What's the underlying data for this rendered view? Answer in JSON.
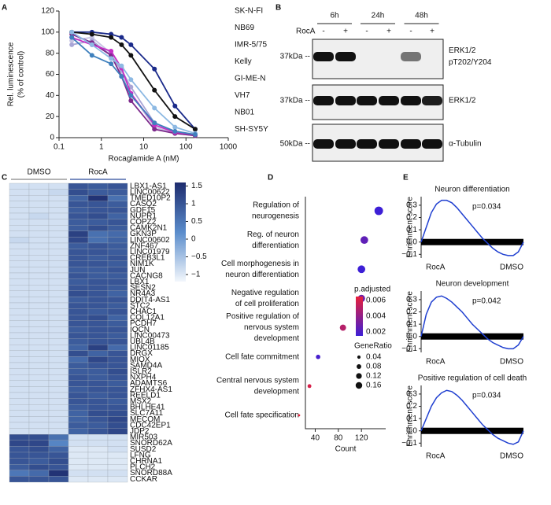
{
  "panel_labels": [
    "A",
    "B",
    "C",
    "D",
    "E"
  ],
  "blot": {
    "time_points": [
      "6h",
      "24h",
      "48h"
    ],
    "treatment_label": "RocA",
    "lanes": [
      "-",
      "+",
      "-",
      "+",
      "-",
      "+"
    ],
    "rows": [
      {
        "marker": "37kDa --",
        "label": [
          "ERK1/2",
          "pT202/Y204"
        ]
      },
      {
        "marker": "37kDa --",
        "label": [
          "ERK1/2"
        ]
      },
      {
        "marker": "50kDa --",
        "label": [
          "α-Tubulin"
        ]
      }
    ]
  },
  "chart_data": [
    {
      "type": "line",
      "x_label": "Rocaglamide A (nM)",
      "y_label": [
        "Rel. luminescence",
        "(% of control)"
      ],
      "xscale": "log",
      "xlim": [
        0.1,
        1000
      ],
      "xticks": [
        0.1,
        1,
        10,
        100,
        1000
      ],
      "ylim": [
        0,
        120
      ],
      "yticks": [
        0,
        20,
        40,
        60,
        80,
        100,
        120
      ],
      "x": [
        0.2,
        0.6,
        1.7,
        3,
        5,
        18,
        55,
        165
      ],
      "series": [
        {
          "name": "SK-N-FI",
          "color": "#c5c3e3",
          "values": [
            92,
            95,
            80,
            62,
            42,
            10,
            4,
            2
          ]
        },
        {
          "name": "NB69",
          "color": "#a9a5d6",
          "values": [
            88,
            92,
            78,
            64,
            48,
            14,
            6,
            3
          ]
        },
        {
          "name": "IMR-5/75",
          "color": "#7d2a8c",
          "values": [
            98,
            90,
            78,
            58,
            35,
            8,
            4,
            2
          ]
        },
        {
          "name": "Kelly",
          "color": "#c62ec6",
          "values": [
            95,
            88,
            82,
            66,
            42,
            12,
            5,
            3
          ]
        },
        {
          "name": "GI-ME-N",
          "color": "#1a2a8a",
          "values": [
            100,
            100,
            98,
            95,
            88,
            65,
            30,
            8
          ]
        },
        {
          "name": "VH7",
          "color": "#111111",
          "values": [
            100,
            98,
            95,
            88,
            78,
            45,
            20,
            8
          ]
        },
        {
          "name": "NB01",
          "color": "#8db9e3",
          "values": [
            100,
            88,
            75,
            68,
            55,
            28,
            10,
            4
          ]
        },
        {
          "name": "SH-SY5Y",
          "color": "#3f80bd",
          "values": [
            95,
            78,
            70,
            58,
            40,
            14,
            6,
            3
          ]
        }
      ]
    },
    {
      "type": "heatmap",
      "column_groups": [
        "DMSO",
        "RocA"
      ],
      "group_colors": [
        "#888888",
        "#2b4a9a"
      ],
      "zlim": [
        -1.2,
        1.6
      ],
      "colors": [
        "#f3f7fc",
        "#5a8ccb",
        "#1e2c6e"
      ],
      "zticks": [
        1.5,
        1,
        0.5,
        0,
        {
          "value": -0.5,
          "label": "−0.5"
        },
        {
          "value": -1,
          "label": "−1"
        }
      ],
      "rows": [
        "LBX1-AS1",
        "LINC00622",
        "TMED10P2",
        "CASQ2",
        "GDF15",
        "NUPR1",
        "COPZ2",
        "CAMK2N1",
        "GKN3P",
        "LINC00602",
        "ZNF467",
        "LINC01979",
        "CREB3L1",
        "NIM1K",
        "JUN",
        "CACNG8",
        "LBX1",
        "SESN2",
        "NR4A3",
        "DDIT4-AS1",
        "STC2",
        "CHAC1",
        "COL12A1",
        "PCDH7",
        "IQCN",
        "LINC00473",
        "UBL4B",
        "LINC01185",
        "DRGX",
        "MIOX",
        "SAMD4A",
        "ISLR2",
        "NXPH4",
        "ADAMTS6",
        "ZFHX4-AS1",
        "REELD1",
        "MSX2",
        "BHLHE41",
        "SLC7A11",
        "MECOM",
        "CDC42EP1",
        "JDP2",
        "MIR503",
        "SNORD62A",
        "SUSD2",
        "LFNG",
        "CHRNA1",
        "PLCH2",
        "SNORD88A",
        "CCKAR"
      ],
      "values": [
        [
          -0.9,
          -0.9,
          -0.9,
          1.0,
          0.9,
          1.0
        ],
        [
          -0.9,
          -0.9,
          -0.8,
          1.1,
          0.9,
          0.9
        ],
        [
          -0.9,
          -0.9,
          -0.9,
          0.8,
          1.5,
          0.6
        ],
        [
          -0.9,
          -0.9,
          -0.9,
          1.0,
          1.0,
          0.9
        ],
        [
          -0.9,
          -0.9,
          -0.9,
          0.9,
          1.0,
          1.0
        ],
        [
          -0.9,
          -0.8,
          -0.9,
          1.0,
          1.1,
          0.8
        ],
        [
          -0.9,
          -0.9,
          -0.9,
          0.9,
          0.9,
          1.0
        ],
        [
          -0.9,
          -0.9,
          -0.9,
          0.9,
          1.1,
          0.9
        ],
        [
          -0.9,
          -0.9,
          -0.9,
          1.3,
          0.6,
          0.7
        ],
        [
          -0.8,
          -0.9,
          -0.9,
          1.2,
          0.6,
          0.8
        ],
        [
          -0.9,
          -0.9,
          -0.9,
          0.9,
          1.0,
          0.9
        ],
        [
          -0.9,
          -0.9,
          -0.9,
          1.0,
          1.0,
          0.9
        ],
        [
          -0.9,
          -0.9,
          -0.9,
          1.0,
          0.9,
          1.0
        ],
        [
          -0.9,
          -0.9,
          -0.9,
          1.0,
          1.0,
          0.9
        ],
        [
          -0.9,
          -0.9,
          -0.9,
          0.9,
          0.9,
          1.0
        ],
        [
          -0.9,
          -0.9,
          -0.9,
          1.0,
          0.9,
          0.9
        ],
        [
          -0.9,
          -0.9,
          -0.9,
          0.9,
          1.0,
          1.0
        ],
        [
          -0.9,
          -0.9,
          -0.9,
          1.0,
          1.0,
          0.9
        ],
        [
          -0.9,
          -0.9,
          -0.9,
          1.1,
          1.0,
          0.8
        ],
        [
          -0.9,
          -0.9,
          -0.9,
          0.9,
          1.0,
          1.0
        ],
        [
          -0.9,
          -0.9,
          -0.9,
          1.0,
          1.0,
          0.9
        ],
        [
          -0.9,
          -0.9,
          -0.9,
          1.0,
          0.9,
          1.0
        ],
        [
          -0.9,
          -0.9,
          -0.9,
          1.0,
          1.1,
          0.8
        ],
        [
          -0.9,
          -0.9,
          -0.9,
          1.0,
          1.0,
          0.9
        ],
        [
          -0.9,
          -0.9,
          -0.9,
          0.9,
          1.0,
          1.0
        ],
        [
          -0.9,
          -0.9,
          -0.9,
          1.0,
          1.0,
          0.9
        ],
        [
          -0.9,
          -0.9,
          -0.9,
          0.9,
          1.0,
          1.0
        ],
        [
          -0.9,
          -0.9,
          -0.9,
          0.8,
          1.3,
          0.7
        ],
        [
          -0.9,
          -0.9,
          -0.9,
          1.1,
          0.8,
          1.0
        ],
        [
          -0.9,
          -0.9,
          -0.9,
          0.7,
          1.2,
          1.0
        ],
        [
          -0.9,
          -0.9,
          -0.9,
          0.9,
          1.0,
          1.0
        ],
        [
          -0.9,
          -0.9,
          -0.9,
          0.9,
          0.9,
          1.1
        ],
        [
          -0.9,
          -0.9,
          -0.9,
          1.0,
          0.9,
          1.0
        ],
        [
          -0.9,
          -0.9,
          -0.9,
          1.0,
          1.0,
          0.9
        ],
        [
          -0.9,
          -0.9,
          -0.9,
          0.9,
          1.0,
          1.0
        ],
        [
          -0.9,
          -0.9,
          -0.9,
          1.0,
          0.9,
          1.0
        ],
        [
          -0.9,
          -0.9,
          -0.9,
          1.0,
          1.0,
          0.9
        ],
        [
          -0.9,
          -0.9,
          -0.9,
          0.9,
          1.0,
          1.0
        ],
        [
          -0.9,
          -0.9,
          -0.9,
          0.8,
          1.1,
          1.1
        ],
        [
          -0.9,
          -0.9,
          -0.9,
          0.8,
          1.0,
          1.2
        ],
        [
          -0.9,
          -0.9,
          -0.9,
          0.9,
          0.9,
          1.1
        ],
        [
          -0.9,
          -0.9,
          -0.9,
          0.8,
          1.0,
          1.2
        ],
        [
          1.1,
          1.1,
          0.6,
          -0.9,
          -0.9,
          -0.9
        ],
        [
          1.2,
          1.2,
          0.3,
          -0.9,
          -0.9,
          -0.9
        ],
        [
          1.0,
          1.1,
          0.8,
          -1.0,
          -1.0,
          -0.9
        ],
        [
          1.0,
          1.0,
          1.0,
          -1.0,
          -1.0,
          -1.0
        ],
        [
          1.0,
          0.9,
          1.1,
          -1.0,
          -1.0,
          -1.0
        ],
        [
          0.9,
          1.1,
          1.0,
          -1.0,
          -1.0,
          -1.0
        ],
        [
          0.5,
          0.7,
          1.5,
          -0.9,
          -0.9,
          -0.9
        ],
        [
          1.0,
          1.0,
          1.0,
          -1.0,
          -1.0,
          -1.0
        ]
      ]
    },
    {
      "type": "dot",
      "x_label": "Count",
      "xlim": [
        23,
        162
      ],
      "xticks": [
        40,
        80,
        120
      ],
      "categories": [
        [
          "Regulation of",
          "neurogenesis"
        ],
        [
          "Reg. of neuron",
          "differentiation"
        ],
        [
          "Cell morphogenesis in",
          "neuron differentiation"
        ],
        [
          "Negative regulation",
          "of cell proliferation"
        ],
        [
          "Positive regulation of",
          "nervous system",
          "development"
        ],
        [
          "Cell fate commitment"
        ],
        [
          "Central nervous system",
          "development"
        ],
        [
          "Cell fate specification"
        ]
      ],
      "values": [
        150,
        125,
        120,
        120,
        88,
        45,
        30,
        12
      ],
      "p_adjust": [
        0.0015,
        0.0025,
        0.0015,
        0.003,
        0.005,
        0.0018,
        0.006,
        0.0065
      ],
      "gene_ratio": [
        0.15,
        0.12,
        0.12,
        0.11,
        0.08,
        0.04,
        0.03,
        0.01
      ],
      "color_title": "p.adjusted",
      "color_lim": [
        0.0015,
        0.0065
      ],
      "colors": [
        "#3d1fd6",
        "#e8203a"
      ],
      "color_ticks": [
        0.006,
        0.004,
        0.002
      ],
      "size_title": "GeneRatio",
      "size_ticks": [
        0.04,
        0.08,
        0.12,
        0.16
      ]
    },
    {
      "type": "gsea",
      "title": "Neuron differentiation",
      "annotation": "p=0.034",
      "y_label": "Enrichment score",
      "x_labels": [
        "RocA",
        "DMSO"
      ],
      "x_label_colors": [
        "#2b4a9a",
        "#111111"
      ],
      "color": "#1f3fd0",
      "ylim": [
        -0.13,
        0.37
      ],
      "yticks": [
        0.3,
        0.2,
        0.1,
        {
          "value": 0,
          "label": "0.0"
        },
        {
          "value": -0.1,
          "label": "−0.1"
        }
      ],
      "values": [
        0,
        0.12,
        0.24,
        0.31,
        0.34,
        0.34,
        0.32,
        0.28,
        0.23,
        0.18,
        0.13,
        0.08,
        0.03,
        -0.01,
        -0.05,
        -0.08,
        -0.1,
        -0.11,
        -0.11,
        -0.08,
        0
      ]
    },
    {
      "type": "gsea",
      "title": "Neuron development",
      "annotation": "p=0.042",
      "y_label": "Enrichment score",
      "x_labels": [
        "RocA",
        "DMSO"
      ],
      "x_label_colors": [
        "#111111",
        "#111111"
      ],
      "color": "#1f3fd0",
      "ylim": [
        -0.13,
        0.37
      ],
      "yticks": [
        0.3,
        0.2,
        0.1,
        {
          "value": 0,
          "label": "0.0"
        },
        {
          "value": -0.1,
          "label": "−0.1"
        }
      ],
      "values": [
        0,
        0.18,
        0.28,
        0.32,
        0.33,
        0.31,
        0.28,
        0.24,
        0.2,
        0.15,
        0.1,
        0.06,
        0.02,
        -0.02,
        -0.05,
        -0.07,
        -0.09,
        -0.1,
        -0.1,
        -0.07,
        0
      ]
    },
    {
      "type": "gsea",
      "title": "Positive regulation of cell death",
      "annotation": "p=0.034",
      "y_label": "Enrichment score",
      "x_labels": [
        "RocA",
        "DMSO"
      ],
      "x_label_colors": [
        "#2b4a9a",
        "#111111"
      ],
      "color": "#1f3fd0",
      "ylim": [
        -0.13,
        0.37
      ],
      "yticks": [
        0.3,
        0.2,
        0.1,
        {
          "value": 0,
          "label": "0.0"
        },
        {
          "value": -0.1,
          "label": "−0.1"
        }
      ],
      "values": [
        0,
        0.1,
        0.2,
        0.27,
        0.31,
        0.33,
        0.32,
        0.29,
        0.25,
        0.2,
        0.15,
        0.1,
        0.05,
        0.01,
        -0.03,
        -0.06,
        -0.08,
        -0.1,
        -0.11,
        -0.09,
        0
      ]
    }
  ]
}
